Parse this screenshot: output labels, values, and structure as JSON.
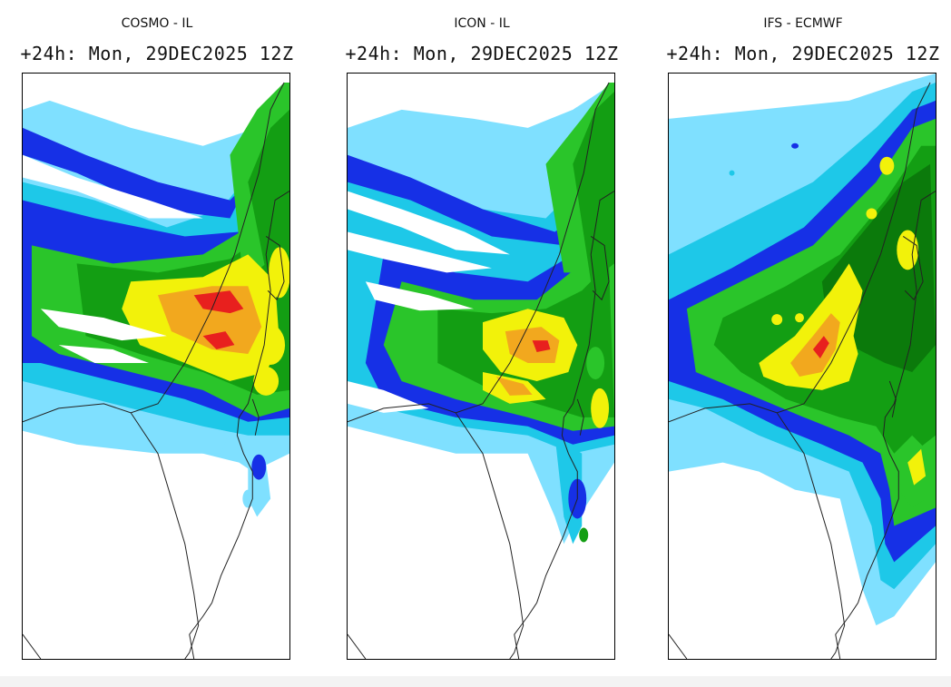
{
  "panels": [
    {
      "model": "COSMO - IL",
      "valid_time": "+24h: Mon, 29DEC2025 12Z",
      "intensity_scheme": "bands",
      "max_precip_region": "central Mediterranean coast / Tel Aviv area"
    },
    {
      "model": "ICON - IL",
      "valid_time": "+24h: Mon, 29DEC2025 12Z",
      "intensity_scheme": "bands",
      "max_precip_region": "inland central Israel"
    },
    {
      "model": "IFS - ECMWF",
      "valid_time": "+24h: Mon, 29DEC2025 12Z",
      "intensity_scheme": "smooth",
      "max_precip_region": "central Israel coastal plain"
    }
  ],
  "colors": {
    "light_blue": "#7fe0ff",
    "cyan": "#1ec8e8",
    "blue": "#1630e6",
    "green_light": "#2ac52a",
    "green": "#139e13",
    "green_dark": "#0b7a0b",
    "yellow": "#f2f20a",
    "orange": "#f2a81e",
    "red": "#e8201e"
  }
}
